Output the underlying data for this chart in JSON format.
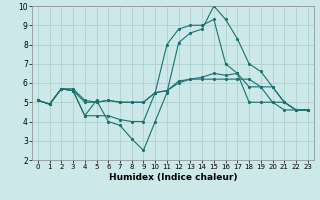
{
  "xlabel": "Humidex (Indice chaleur)",
  "background_color": "#cce8e8",
  "grid_color": "#aacccc",
  "line_color": "#1a7070",
  "xlim": [
    -0.5,
    23.5
  ],
  "ylim": [
    2,
    10
  ],
  "xticks": [
    0,
    1,
    2,
    3,
    4,
    5,
    6,
    7,
    8,
    9,
    10,
    11,
    12,
    13,
    14,
    15,
    16,
    17,
    18,
    19,
    20,
    21,
    22,
    23
  ],
  "yticks": [
    2,
    3,
    4,
    5,
    6,
    7,
    8,
    9,
    10
  ],
  "lines": [
    {
      "x": [
        0,
        1,
        2,
        3,
        4,
        5,
        6,
        7,
        8,
        9,
        10,
        11,
        12,
        13,
        14,
        15,
        16,
        17,
        18,
        19,
        20,
        21,
        22,
        23
      ],
      "y": [
        5.1,
        4.9,
        5.7,
        5.6,
        4.3,
        5.1,
        4.0,
        3.8,
        3.1,
        2.5,
        4.0,
        5.5,
        8.1,
        8.6,
        8.8,
        10.0,
        9.3,
        8.3,
        7.0,
        6.6,
        5.8,
        5.0,
        4.6,
        4.6
      ]
    },
    {
      "x": [
        0,
        1,
        2,
        3,
        4,
        5,
        6,
        7,
        8,
        9,
        10,
        11,
        12,
        13,
        14,
        15,
        16,
        17,
        18,
        19,
        20,
        21,
        22,
        23
      ],
      "y": [
        5.1,
        4.9,
        5.7,
        5.6,
        5.0,
        5.0,
        5.1,
        5.0,
        5.0,
        5.0,
        5.5,
        5.6,
        6.1,
        6.2,
        6.2,
        6.2,
        6.2,
        6.2,
        6.2,
        5.8,
        5.0,
        4.6,
        4.6,
        4.6
      ]
    },
    {
      "x": [
        0,
        1,
        2,
        3,
        4,
        5,
        6,
        7,
        8,
        9,
        10,
        11,
        12,
        13,
        14,
        15,
        16,
        17,
        18,
        19,
        20,
        21,
        22,
        23
      ],
      "y": [
        5.1,
        4.9,
        5.7,
        5.7,
        5.1,
        5.0,
        5.1,
        5.0,
        5.0,
        5.0,
        5.5,
        8.0,
        8.8,
        9.0,
        9.0,
        9.3,
        7.0,
        6.5,
        5.0,
        5.0,
        5.0,
        5.0,
        4.6,
        4.6
      ]
    },
    {
      "x": [
        0,
        1,
        2,
        3,
        4,
        5,
        6,
        7,
        8,
        9,
        10,
        11,
        12,
        13,
        14,
        15,
        16,
        17,
        18,
        19,
        20,
        21,
        22,
        23
      ],
      "y": [
        5.1,
        4.9,
        5.7,
        5.6,
        4.3,
        4.3,
        4.3,
        4.1,
        4.0,
        4.0,
        5.5,
        5.6,
        6.0,
        6.2,
        6.3,
        6.5,
        6.4,
        6.5,
        5.8,
        5.8,
        5.8,
        5.0,
        4.6,
        4.6
      ]
    }
  ]
}
